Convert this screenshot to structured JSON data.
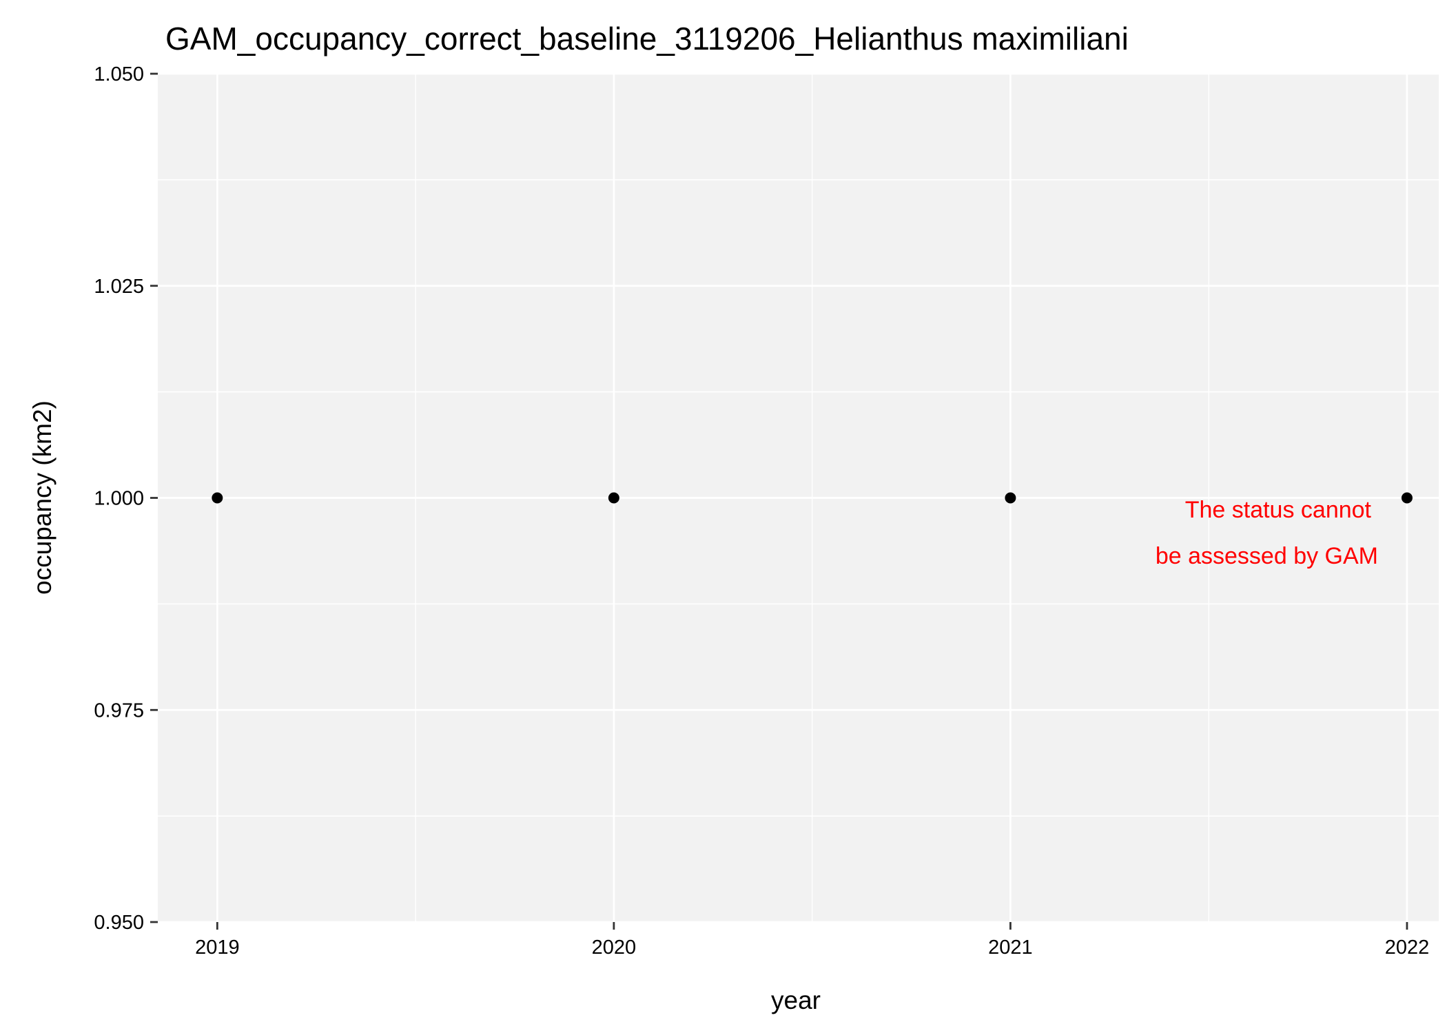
{
  "chart_data": {
    "type": "scatter",
    "title": "GAM_occupancy_correct_baseline_3119206_Helianthus maximiliani",
    "xlabel": "year",
    "ylabel": "occupancy (km2)",
    "x": [
      2019,
      2020,
      2021,
      2022
    ],
    "y": [
      1.0,
      1.0,
      1.0,
      1.0
    ],
    "xlim": [
      2018.85,
      2022.08
    ],
    "ylim": [
      0.95,
      1.05
    ],
    "x_ticks": [
      "2019",
      "2020",
      "2021",
      "2022"
    ],
    "y_ticks": [
      "0.950",
      "0.975",
      "1.000",
      "1.025",
      "1.050"
    ],
    "grid": true,
    "annotation": {
      "lines": [
        "The status cannot",
        "be assessed by GAM"
      ],
      "x": 2022,
      "y": 1.0,
      "color": "#ff0000"
    },
    "colors": {
      "panel_background": "#f2f2f2",
      "grid": "#ffffff",
      "point": "#000000"
    }
  }
}
